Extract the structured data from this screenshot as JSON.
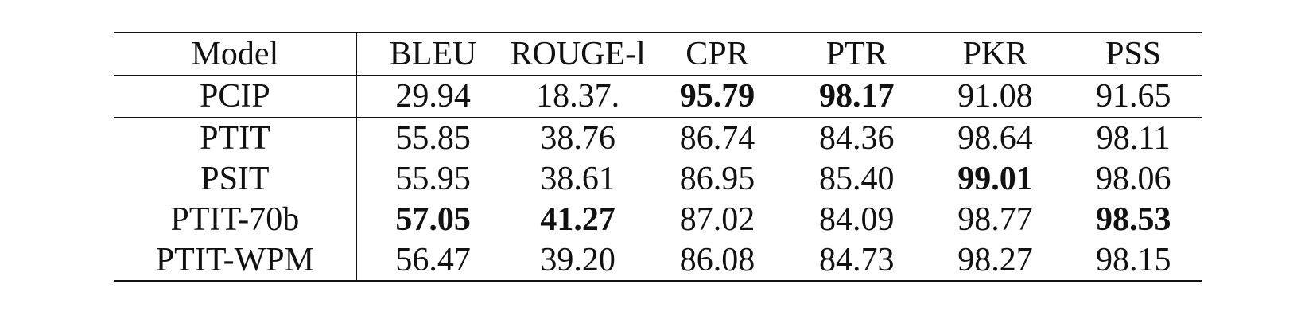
{
  "table": {
    "headers": [
      "Model",
      "BLEU",
      "ROUGE-l",
      "CPR",
      "PTR",
      "PKR",
      "PSS"
    ],
    "rows": [
      {
        "model": "PCIP",
        "cells": [
          "29.94",
          "18.37.",
          "95.79",
          "98.17",
          "91.08",
          "91.65"
        ],
        "bold": [
          false,
          false,
          true,
          true,
          false,
          false
        ]
      },
      {
        "model": "PTIT",
        "cells": [
          "55.85",
          "38.76",
          "86.74",
          "84.36",
          "98.64",
          "98.11"
        ],
        "bold": [
          false,
          false,
          false,
          false,
          false,
          false
        ]
      },
      {
        "model": "PSIT",
        "cells": [
          "55.95",
          "38.61",
          "86.95",
          "85.40",
          "99.01",
          "98.06"
        ],
        "bold": [
          false,
          false,
          false,
          false,
          true,
          false
        ]
      },
      {
        "model": "PTIT-70b",
        "cells": [
          "57.05",
          "41.27",
          "87.02",
          "84.09",
          "98.77",
          "98.53"
        ],
        "bold": [
          true,
          true,
          false,
          false,
          false,
          true
        ]
      },
      {
        "model": "PTIT-WPM",
        "cells": [
          "56.47",
          "39.20",
          "86.08",
          "84.73",
          "98.27",
          "98.15"
        ],
        "bold": [
          false,
          false,
          false,
          false,
          false,
          false
        ]
      }
    ]
  }
}
